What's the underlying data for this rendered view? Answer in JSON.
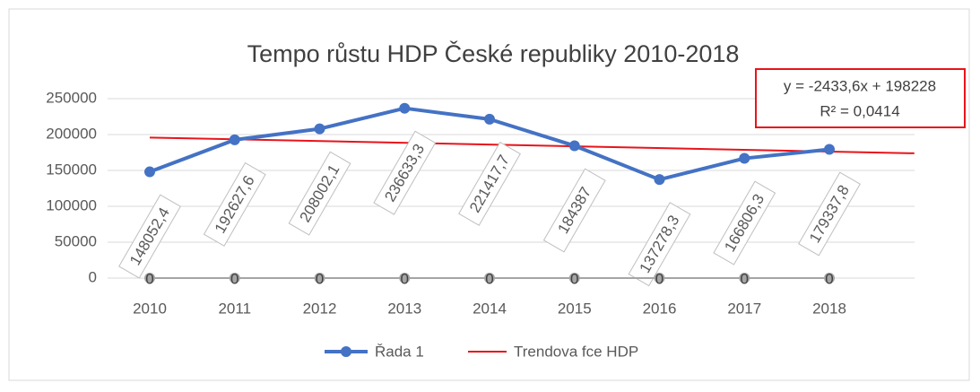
{
  "chart_data": {
    "type": "line",
    "title": "Tempo růstu HDP České republiky 2010-2018",
    "categories": [
      "2010",
      "2011",
      "2012",
      "2013",
      "2014",
      "2015",
      "2016",
      "2017",
      "2018"
    ],
    "series": [
      {
        "name": "Řada 1",
        "color": "#4472c4",
        "values": [
          148052.4,
          192627.6,
          208002.1,
          236633.3,
          221417.7,
          184387,
          137278.3,
          166806.3,
          179337.8
        ],
        "value_labels": [
          "148052,4",
          "192627,6",
          "208002,1",
          "236633,3",
          "221417,7",
          "184387",
          "137278,3",
          "166806,3",
          "179337,8"
        ]
      },
      {
        "color": "#a5a5a5",
        "values": [
          0,
          0,
          0,
          0,
          0,
          0,
          0,
          0,
          0
        ]
      }
    ],
    "trendline": {
      "name": "Trendova fce HDP",
      "color": "#e8141b",
      "slope": -2433.6,
      "intercept": 198228,
      "forecast_forward": 1,
      "equation": "y = -2433,6x + 198228",
      "r_squared": "R² = 0,0414"
    },
    "ylim": [
      0,
      250000
    ],
    "yticks": [
      0,
      50000,
      100000,
      150000,
      200000,
      250000
    ],
    "grid": true,
    "legend": "bottom"
  }
}
